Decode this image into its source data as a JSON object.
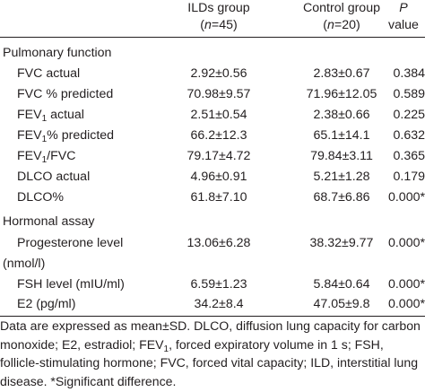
{
  "header": {
    "col_ild": "ILDs group",
    "col_ild_n_open": "(",
    "col_ild_n_var": "n",
    "col_ild_n_val": "=45)",
    "col_control": "Control group",
    "col_control_n_open": "(",
    "col_control_n_var": "n",
    "col_control_n_val": "=20)",
    "col_p": "P",
    "col_p_value": "value"
  },
  "sections": [
    {
      "title": "Pulmonary function",
      "rows": [
        {
          "label": "FVC actual",
          "ild": "2.92±0.56",
          "control": "2.83±0.67",
          "p": "0.384"
        },
        {
          "label": "FVC % predicted",
          "ild": "70.98±9.57",
          "control": "71.96±12.05",
          "p": "0.589"
        },
        {
          "label_pre": "FEV",
          "label_sub": "1",
          "label_post": " actual",
          "ild": "2.51±0.54",
          "control": "2.38±0.66",
          "p": "0.225"
        },
        {
          "label_pre": "FEV",
          "label_sub": "1",
          "label_post": "% predicted",
          "ild": "66.2±12.3",
          "control": "65.1±14.1",
          "p": "0.632"
        },
        {
          "label_pre": "FEV",
          "label_sub": "1",
          "label_post": "/FVC",
          "ild": "79.17±4.72",
          "control": "79.84±3.11",
          "p": "0.365"
        },
        {
          "label": "DLCO actual",
          "ild": "4.96±0.91",
          "control": "5.21±1.28",
          "p": "0.179"
        },
        {
          "label": "DLCO%",
          "ild": "61.8±7.10",
          "control": "68.7±6.86",
          "p": "0.000*"
        }
      ]
    },
    {
      "title": "Hormonal assay",
      "rows": [
        {
          "label": "Progesterone level",
          "label_line2": "(nmol/l)",
          "ild": "13.06±6.28",
          "control": "38.32±9.77",
          "p": "0.000*"
        },
        {
          "label": "FSH level (mIU/ml)",
          "ild": "6.59±1.23",
          "control": "5.84±0.64",
          "p": "0.000*"
        },
        {
          "label": "E2 (pg/ml)",
          "ild": "34.2±8.4",
          "control": "47.05±9.8",
          "p": "0.000*"
        }
      ]
    }
  ],
  "footnote": {
    "part1": "Data are expressed as mean±SD. DLCO, diffusion lung capacity for carbon monoxide; E2, estradiol; FEV",
    "sub": "1",
    "part2": ", forced expiratory volume in 1 s; FSH, follicle-stimulating hormone; FVC, forced vital capacity; ILD, interstitial lung disease. *Significant difference."
  }
}
